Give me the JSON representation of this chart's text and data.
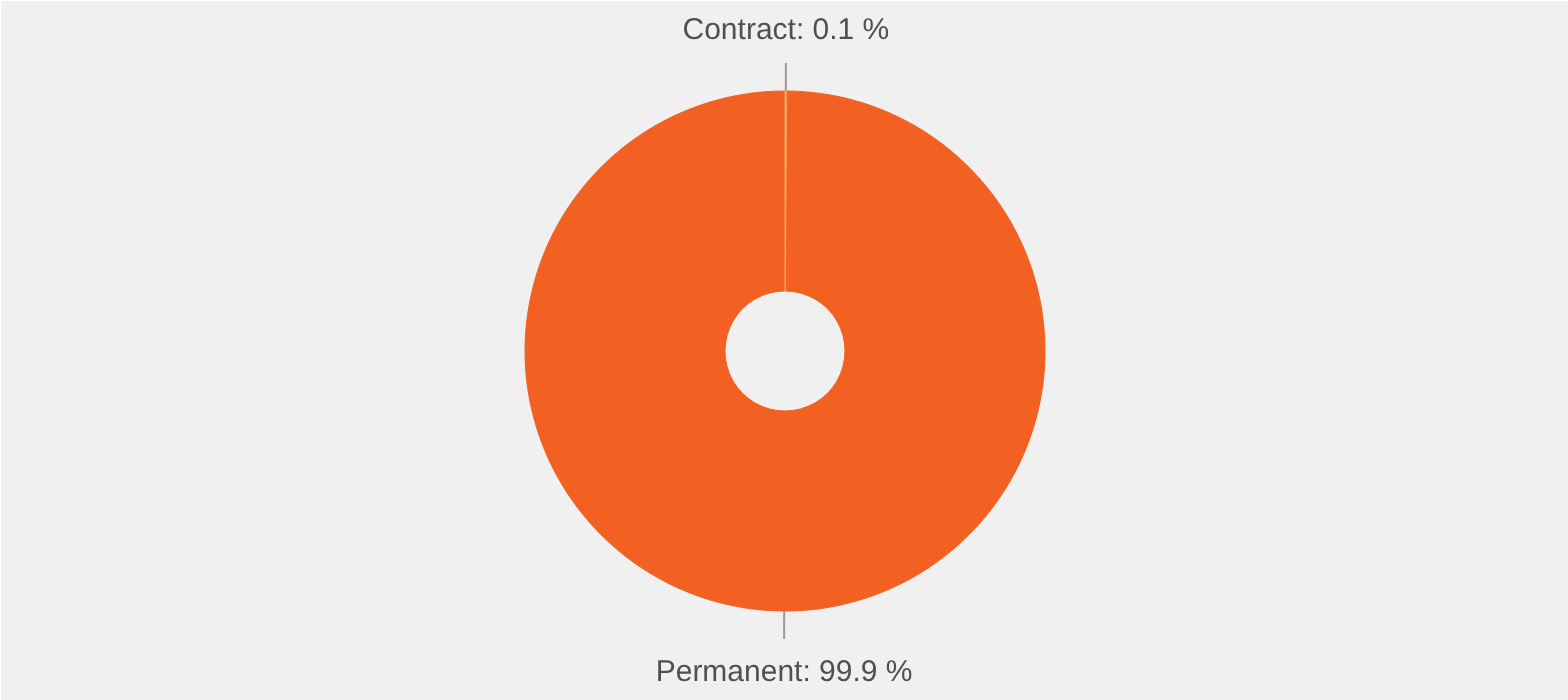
{
  "chart_data": {
    "type": "donut",
    "categories": [
      "Contract",
      "Permanent"
    ],
    "values": [
      0.1,
      99.9
    ],
    "colors": [
      "#f7a35c",
      "#f26122"
    ],
    "value_labels": [
      "0.1 %",
      "99.9 %"
    ]
  }
}
